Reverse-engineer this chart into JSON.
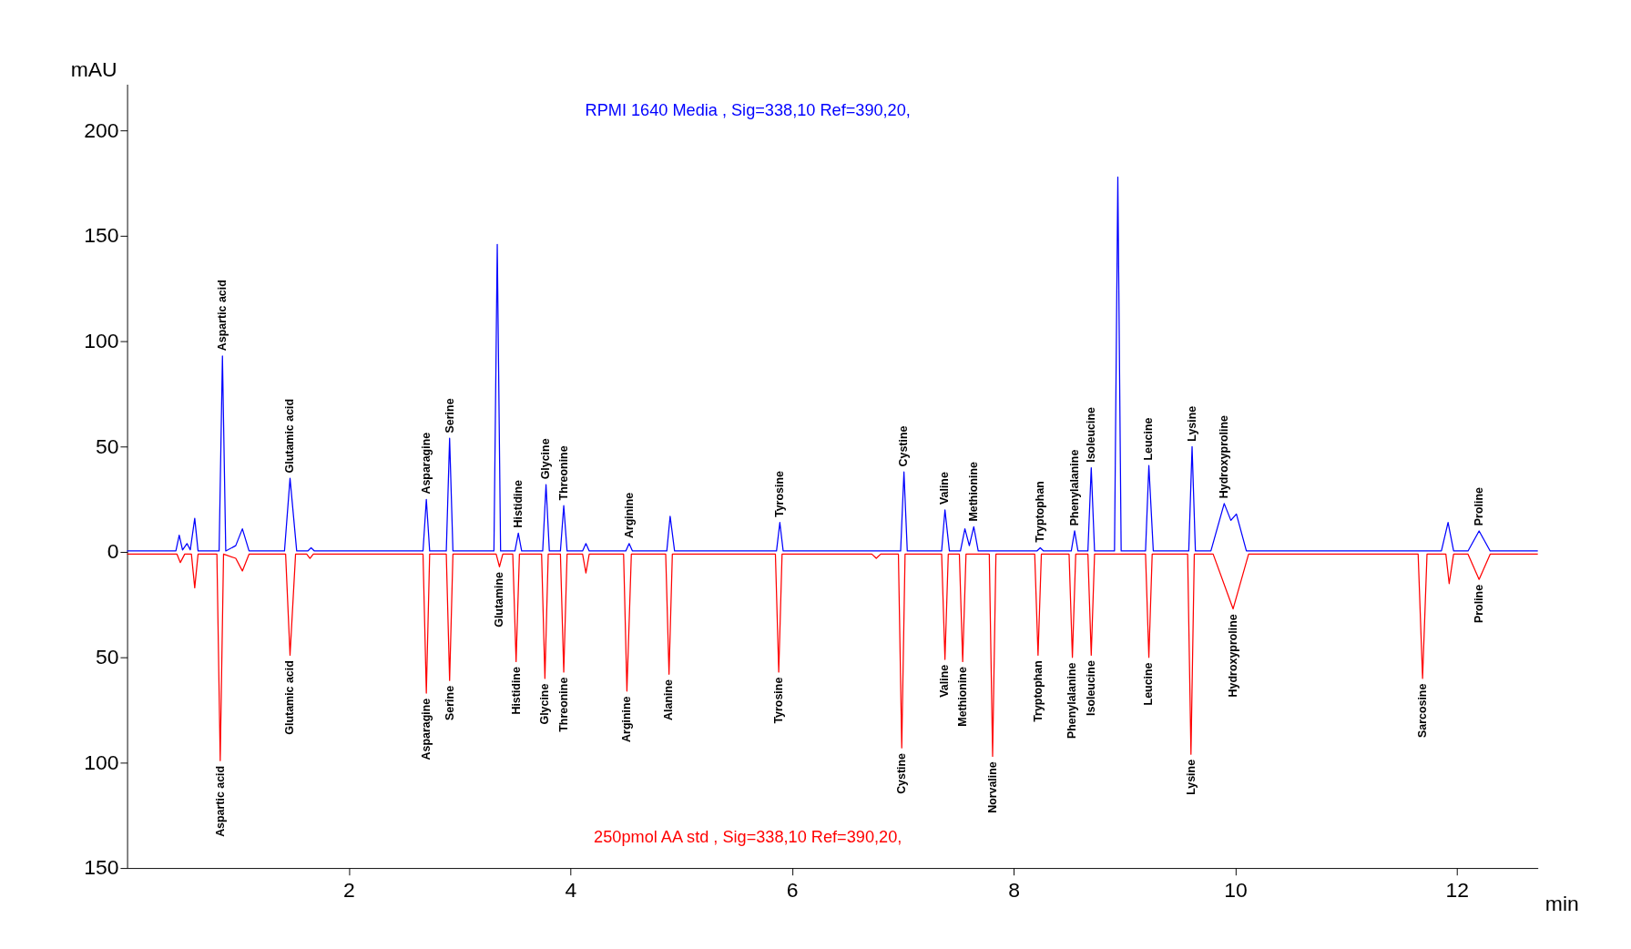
{
  "chart_data": {
    "type": "line",
    "xlabel": "min",
    "ylabel": "mAU",
    "xlim": [
      0,
      12.73
    ],
    "xticks": [
      2,
      4,
      6,
      8,
      10,
      12
    ],
    "ylim": [
      -150,
      222
    ],
    "yticks": [
      {
        "value": -150,
        "label": "150"
      },
      {
        "value": -100,
        "label": "100"
      },
      {
        "value": -50,
        "label": "50"
      },
      0,
      50,
      100,
      150,
      200
    ],
    "grid": false,
    "marker": "none",
    "line_style": "solid",
    "series": [
      {
        "name": "RPMI 1640 Media , Sig=338,10 Ref=390,20,",
        "color": "#0000ff",
        "x": [
          0,
          0.44,
          0.47,
          0.5,
          0.54,
          0.57,
          0.61,
          0.64,
          0.83,
          0.86,
          0.89,
          0.98,
          1.04,
          1.1,
          1.42,
          1.47,
          1.53,
          1.63,
          1.66,
          1.69,
          2.67,
          2.7,
          2.73,
          2.88,
          2.91,
          2.94,
          3.31,
          3.34,
          3.37,
          3.5,
          3.53,
          3.56,
          3.75,
          3.78,
          3.81,
          3.91,
          3.94,
          3.97,
          4.11,
          4.14,
          4.17,
          4.5,
          4.53,
          4.56,
          4.87,
          4.9,
          4.94,
          5.86,
          5.89,
          5.92,
          6.98,
          7.01,
          7.04,
          7.35,
          7.38,
          7.42,
          7.52,
          7.56,
          7.6,
          7.64,
          7.68,
          8.21,
          8.24,
          8.27,
          8.52,
          8.55,
          8.58,
          8.67,
          8.7,
          8.73,
          8.91,
          8.94,
          8.97,
          9.19,
          9.22,
          9.26,
          9.58,
          9.61,
          9.64,
          9.78,
          9.9,
          9.96,
          10.01,
          10.1,
          11.86,
          11.92,
          11.97,
          12.1,
          12.2,
          12.3,
          12.73
        ],
        "values": [
          0.5,
          0.5,
          8,
          1,
          4,
          1,
          16,
          0.5,
          0.5,
          93,
          0.5,
          3,
          11,
          0.5,
          0.5,
          35,
          0.5,
          0.5,
          2,
          0.5,
          0.5,
          25,
          0.5,
          0.5,
          54,
          0.5,
          0.5,
          146,
          0.5,
          0.5,
          9,
          0.5,
          0.5,
          32,
          0.5,
          0.5,
          22,
          0.5,
          0.5,
          4,
          0.5,
          0.5,
          4,
          0.5,
          0.5,
          17,
          0.5,
          0.5,
          14,
          0.5,
          0.5,
          38,
          0.5,
          0.5,
          20,
          0.5,
          0.5,
          11,
          3,
          12,
          0.5,
          0.5,
          2,
          0.5,
          0.5,
          10,
          0.5,
          0.5,
          40,
          0.5,
          0.5,
          178,
          0.5,
          0.5,
          41,
          0.5,
          0.5,
          50,
          0.5,
          0.5,
          23,
          15,
          18,
          0.5,
          0.5,
          14,
          0.5,
          0.5,
          10,
          0.5,
          0.5
        ]
      },
      {
        "name": "250pmol AA std  , Sig=338,10 Ref=390,20,",
        "color": "#ff0000",
        "x": [
          0,
          0.45,
          0.48,
          0.52,
          0.58,
          0.61,
          0.64,
          0.81,
          0.84,
          0.87,
          0.98,
          1.04,
          1.1,
          1.43,
          1.47,
          1.52,
          1.62,
          1.65,
          1.68,
          2.67,
          2.7,
          2.73,
          2.88,
          2.91,
          2.94,
          3.33,
          3.36,
          3.39,
          3.48,
          3.51,
          3.54,
          3.74,
          3.77,
          3.8,
          3.91,
          3.94,
          3.97,
          4.11,
          4.14,
          4.17,
          4.48,
          4.51,
          4.55,
          4.86,
          4.89,
          4.92,
          5.85,
          5.88,
          5.91,
          6.72,
          6.76,
          6.8,
          6.96,
          6.99,
          7.02,
          7.35,
          7.38,
          7.41,
          7.51,
          7.54,
          7.57,
          7.78,
          7.81,
          7.84,
          8.19,
          8.22,
          8.25,
          8.5,
          8.53,
          8.56,
          8.67,
          8.7,
          8.73,
          9.19,
          9.22,
          9.25,
          9.57,
          9.6,
          9.63,
          9.8,
          9.98,
          10.12,
          11.65,
          11.69,
          11.73,
          11.9,
          11.93,
          11.97,
          12.1,
          12.2,
          12.3,
          12.73
        ],
        "values": [
          -1,
          -1,
          -5,
          -1,
          -1,
          -17,
          -1,
          -1,
          -99,
          -1,
          -3,
          -9,
          -1,
          -1,
          -49,
          -1,
          -1,
          -3,
          -1,
          -1,
          -67,
          -1,
          -1,
          -61,
          -1,
          -1,
          -7,
          -1,
          -1,
          -52,
          -1,
          -1,
          -60,
          -1,
          -1,
          -57,
          -1,
          -1,
          -10,
          -1,
          -1,
          -66,
          -1,
          -1,
          -58,
          -1,
          -1,
          -57,
          -1,
          -1,
          -3,
          -1,
          -1,
          -93,
          -1,
          -1,
          -51,
          -1,
          -1,
          -52,
          -1,
          -1,
          -97,
          -1,
          -1,
          -49,
          -1,
          -1,
          -50,
          -1,
          -1,
          -49,
          -1,
          -1,
          -50,
          -1,
          -1,
          -96,
          -1,
          -1,
          -27,
          -1,
          -1,
          -60,
          -1,
          -1,
          -15,
          -1,
          -1,
          -13,
          -1,
          -1
        ]
      }
    ],
    "annotations": [
      {
        "text": "Aspartic acid",
        "x": 0.86,
        "y": 93
      },
      {
        "text": "Glutamic acid",
        "x": 1.47,
        "y": 35
      },
      {
        "text": "Asparagine",
        "x": 2.7,
        "y": 25
      },
      {
        "text": "Serine",
        "x": 2.91,
        "y": 54
      },
      {
        "text": "Histidine",
        "x": 3.53,
        "y": 9
      },
      {
        "text": "Glycine",
        "x": 3.78,
        "y": 32
      },
      {
        "text": "Threonine",
        "x": 3.94,
        "y": 22
      },
      {
        "text": "Arginine",
        "x": 4.53,
        "y": 4
      },
      {
        "text": "Tyrosine",
        "x": 5.89,
        "y": 14
      },
      {
        "text": "Cystine",
        "x": 7.01,
        "y": 38
      },
      {
        "text": "Valine",
        "x": 7.38,
        "y": 20
      },
      {
        "text": "Methionine",
        "x": 7.64,
        "y": 12
      },
      {
        "text": "Tryptophan",
        "x": 8.24,
        "y": 2
      },
      {
        "text": "Phenylalanine",
        "x": 8.55,
        "y": 10
      },
      {
        "text": "Isoleucine",
        "x": 8.7,
        "y": 40
      },
      {
        "text": "Leucine",
        "x": 9.22,
        "y": 41
      },
      {
        "text": "Lysine",
        "x": 9.61,
        "y": 50
      },
      {
        "text": "Hydroxyproline",
        "x": 9.9,
        "y": 23
      },
      {
        "text": "Proline",
        "x": 12.2,
        "y": 10
      },
      {
        "text": "Aspartic acid",
        "x": 0.84,
        "y": -99
      },
      {
        "text": "Glutamic acid",
        "x": 1.47,
        "y": -49
      },
      {
        "text": "Asparagine",
        "x": 2.7,
        "y": -67
      },
      {
        "text": "Serine",
        "x": 2.91,
        "y": -61
      },
      {
        "text": "Glutamine",
        "x": 3.36,
        "y": -7
      },
      {
        "text": "Histidine",
        "x": 3.51,
        "y": -52
      },
      {
        "text": "Glycine",
        "x": 3.77,
        "y": -60
      },
      {
        "text": "Threonine",
        "x": 3.94,
        "y": -57
      },
      {
        "text": "Arginine",
        "x": 4.51,
        "y": -66
      },
      {
        "text": "Alanine",
        "x": 4.89,
        "y": -58
      },
      {
        "text": "Tyrosine",
        "x": 5.88,
        "y": -57
      },
      {
        "text": "Cystine",
        "x": 6.99,
        "y": -93
      },
      {
        "text": "Valine",
        "x": 7.38,
        "y": -51
      },
      {
        "text": "Methionine",
        "x": 7.54,
        "y": -52
      },
      {
        "text": "Norvaline",
        "x": 7.81,
        "y": -97
      },
      {
        "text": "Tryptophan",
        "x": 8.22,
        "y": -49
      },
      {
        "text": "Phenylalanine",
        "x": 8.53,
        "y": -50
      },
      {
        "text": "Isoleucine",
        "x": 8.7,
        "y": -49
      },
      {
        "text": "Leucine",
        "x": 9.22,
        "y": -50
      },
      {
        "text": "Lysine",
        "x": 9.6,
        "y": -96
      },
      {
        "text": "Hydroxyproline",
        "x": 9.98,
        "y": -27
      },
      {
        "text": "Sarcosine",
        "x": 11.69,
        "y": -60
      },
      {
        "text": "Proline",
        "x": 12.2,
        "y": -13
      }
    ]
  }
}
